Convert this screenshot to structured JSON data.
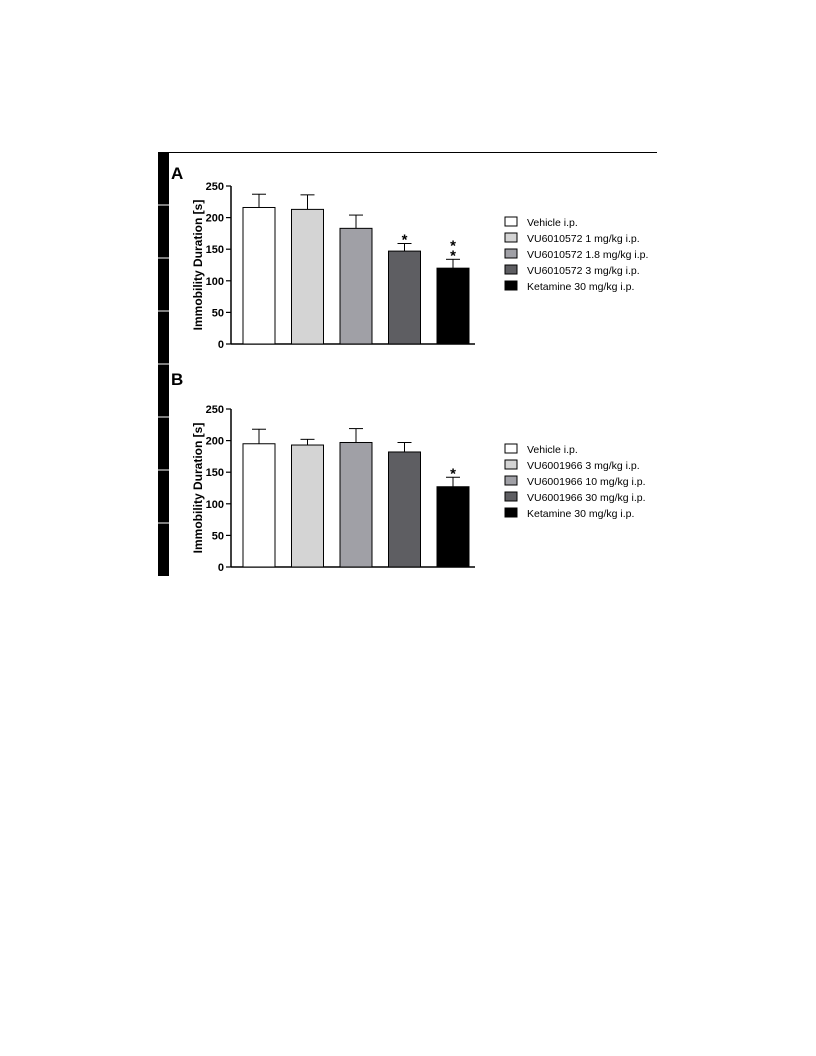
{
  "chart_data": [
    {
      "type": "bar",
      "panel": "A",
      "ylabel": "Immobility Duration [s]",
      "ylim": [
        0,
        250
      ],
      "yticks": [
        0,
        50,
        100,
        150,
        200,
        250
      ],
      "legend_position": "right",
      "bars": [
        {
          "name": "Vehicle i.p.",
          "value": 216,
          "error": 21,
          "color": "#ffffff",
          "sig": ""
        },
        {
          "name": "VU6010572 1 mg/kg i.p.",
          "value": 213,
          "error": 23,
          "color": "#d4d4d4",
          "sig": ""
        },
        {
          "name": "VU6010572 1.8 mg/kg i.p.",
          "value": 183,
          "error": 21,
          "color": "#a0a0a6",
          "sig": ""
        },
        {
          "name": "VU6010572 3 mg/kg i.p.",
          "value": 147,
          "error": 12,
          "color": "#5e5e62",
          "sig": "*"
        },
        {
          "name": "Ketamine 30 mg/kg i.p.",
          "value": 120,
          "error": 14,
          "color": "#000000",
          "sig": "**"
        }
      ]
    },
    {
      "type": "bar",
      "panel": "B",
      "ylabel": "Immobility Duration [s]",
      "ylim": [
        0,
        250
      ],
      "yticks": [
        0,
        50,
        100,
        150,
        200,
        250
      ],
      "legend_position": "right",
      "bars": [
        {
          "name": "Vehicle i.p.",
          "value": 195,
          "error": 23,
          "color": "#ffffff",
          "sig": ""
        },
        {
          "name": "VU6001966 3 mg/kg i.p.",
          "value": 193,
          "error": 9,
          "color": "#d4d4d4",
          "sig": ""
        },
        {
          "name": "VU6001966 10 mg/kg i.p.",
          "value": 197,
          "error": 22,
          "color": "#a0a0a6",
          "sig": ""
        },
        {
          "name": "VU6001966 30 mg/kg i.p.",
          "value": 182,
          "error": 15,
          "color": "#5e5e62",
          "sig": ""
        },
        {
          "name": "Ketamine 30 mg/kg i.p.",
          "value": 127,
          "error": 15,
          "color": "#000000",
          "sig": "*"
        }
      ]
    }
  ]
}
